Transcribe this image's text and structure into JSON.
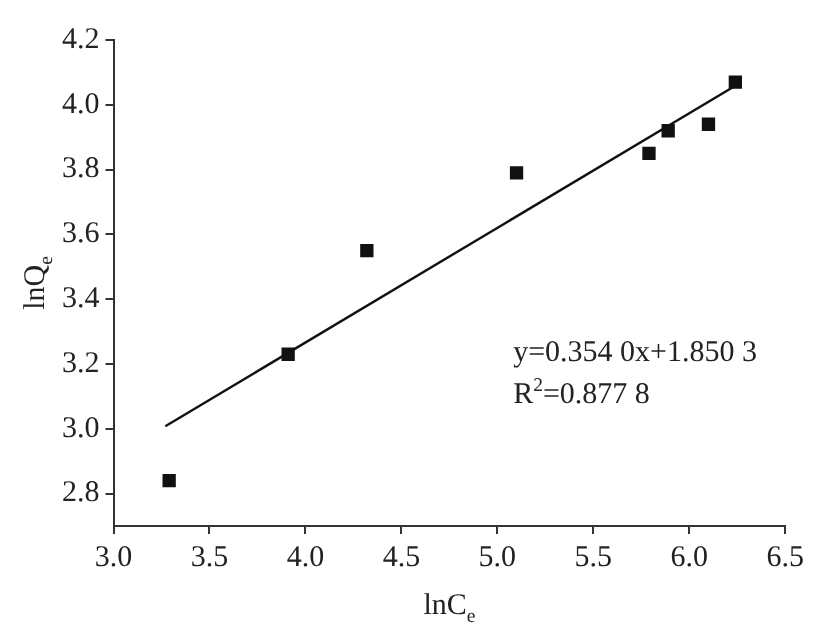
{
  "chart_data": {
    "type": "scatter",
    "xlabel": "lnC$_{e}$",
    "ylabel": "lnQ$_{e}$",
    "series": [
      {
        "type": "scatter",
        "color": "#111111",
        "marker": "square",
        "x": [
          3.29,
          3.91,
          4.32,
          5.1,
          5.79,
          5.89,
          6.1,
          6.24
        ],
        "values": [
          2.84,
          3.23,
          3.55,
          3.79,
          3.85,
          3.92,
          3.94,
          4.07
        ]
      },
      {
        "type": "line",
        "color": "#111111",
        "marker": "none",
        "line_style": "solid",
        "x": [
          3.27,
          6.24
        ],
        "values": [
          3.008,
          4.059
        ]
      }
    ],
    "annotations": [
      "y=0.354 0x+1.850 3",
      "R$^{2}$=0.877 8"
    ],
    "xlim": [
      3.0,
      6.5
    ],
    "xticks": [
      {
        "value": 3,
        "label": "3.0"
      },
      {
        "value": 3.5,
        "label": "3.5"
      },
      {
        "value": 4,
        "label": "4.0"
      },
      {
        "value": 4.5,
        "label": "4.5"
      },
      {
        "value": 5,
        "label": "5.0"
      },
      {
        "value": 5.5,
        "label": "5.5"
      },
      {
        "value": 6,
        "label": "6.0"
      },
      {
        "value": 6.5,
        "label": "6.5"
      }
    ],
    "ylim": [
      2.7,
      4.2
    ],
    "yticks": [
      {
        "value": 2.8,
        "label": "2.8"
      },
      {
        "value": 3,
        "label": "3.0"
      },
      {
        "value": 3.2,
        "label": "3.2"
      },
      {
        "value": 3.4,
        "label": "3.4"
      },
      {
        "value": 3.6,
        "label": "3.6"
      },
      {
        "value": 3.8,
        "label": "3.8"
      },
      {
        "value": 4,
        "label": "4.0"
      },
      {
        "value": 4.2,
        "label": "4.2"
      }
    ],
    "grid": false,
    "legend": false
  }
}
